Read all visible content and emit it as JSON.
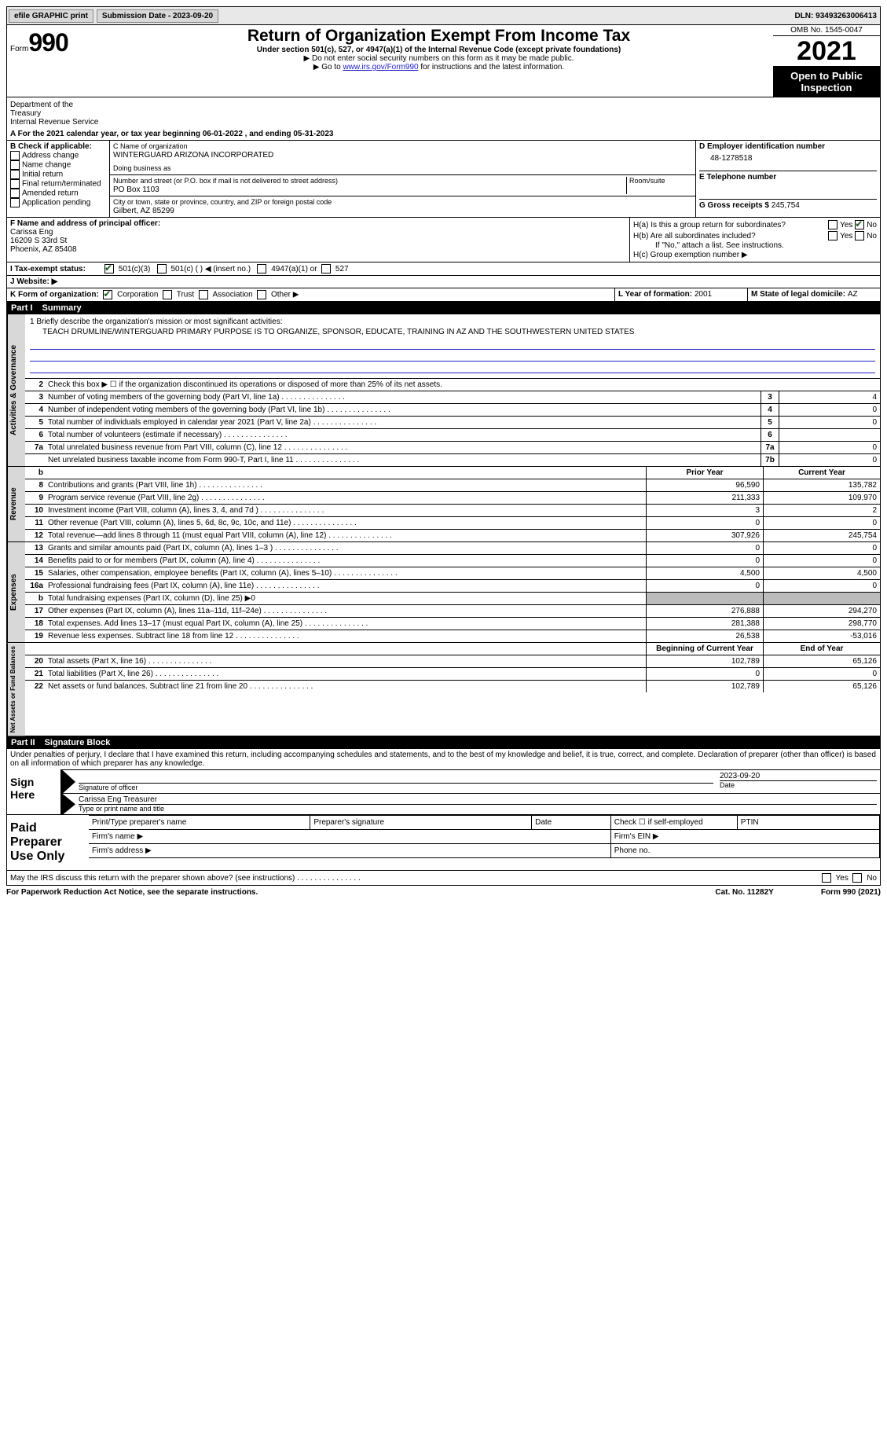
{
  "topbar": {
    "efile": "efile GRAPHIC print",
    "submission_label": "Submission Date - 2023-09-20",
    "dln_label": "DLN: 93493263006413"
  },
  "header": {
    "form_word": "Form",
    "form_num": "990",
    "title": "Return of Organization Exempt From Income Tax",
    "subtitle": "Under section 501(c), 527, or 4947(a)(1) of the Internal Revenue Code (except private foundations)",
    "note1": "▶ Do not enter social security numbers on this form as it may be made public.",
    "note2_pre": "▶ Go to ",
    "note2_link": "www.irs.gov/Form990",
    "note2_post": " for instructions and the latest information.",
    "omb": "OMB No. 1545-0047",
    "year": "2021",
    "open": "Open to Public Inspection",
    "dept": "Department of the Treasury",
    "irs": "Internal Revenue Service"
  },
  "A": {
    "text": "A For the 2021 calendar year, or tax year beginning 06-01-2022    , and ending 05-31-2023"
  },
  "B": {
    "label": "B Check if applicable:",
    "opts": [
      "Address change",
      "Name change",
      "Initial return",
      "Final return/terminated",
      "Amended return",
      "Application pending"
    ]
  },
  "C": {
    "name_label": "C Name of organization",
    "name": "WINTERGUARD ARIZONA INCORPORATED",
    "dba_label": "Doing business as",
    "street_label": "Number and street (or P.O. box if mail is not delivered to street address)",
    "room_label": "Room/suite",
    "street": "PO Box 1103",
    "city_label": "City or town, state or province, country, and ZIP or foreign postal code",
    "city": "Gilbert, AZ   85299"
  },
  "D": {
    "ein_label": "D Employer identification number",
    "ein": "48-1278518",
    "phone_label": "E Telephone number",
    "gross_label": "G Gross receipts $",
    "gross": "245,754"
  },
  "F": {
    "label": "F  Name and address of principal officer:",
    "line1": "Carissa Eng",
    "line2": "16209 S 33rd St",
    "line3": "Phoenix, AZ  85408"
  },
  "H": {
    "a_label": "H(a)  Is this a group return for subordinates?",
    "b_label": "H(b)  Are all subordinates included?",
    "b_note": "If \"No,\" attach a list. See instructions.",
    "c_label": "H(c)  Group exemption number ▶",
    "yes": "Yes",
    "no": "No"
  },
  "I": {
    "label": "I   Tax-exempt status:",
    "opt1": "501(c)(3)",
    "opt2": "501(c) (   ) ◀ (insert no.)",
    "opt3": "4947(a)(1) or",
    "opt4": "527"
  },
  "J": {
    "label": "J   Website: ▶"
  },
  "K": {
    "label": "K Form of organization:",
    "corp": "Corporation",
    "trust": "Trust",
    "assoc": "Association",
    "other": "Other ▶"
  },
  "L": {
    "label": "L Year of formation: ",
    "val": "2001"
  },
  "M": {
    "label": "M State of legal domicile: ",
    "val": "AZ"
  },
  "part1": {
    "num": "Part I",
    "title": "Summary"
  },
  "mission": {
    "label": "1   Briefly describe the organization's mission or most significant activities:",
    "text": "TEACH DRUMLINE/WINTERGUARD PRIMARY PURPOSE IS TO ORGANIZE, SPONSOR, EDUCATE, TRAINING IN AZ AND THE SOUTHWESTERN UNITED STATES"
  },
  "vert": {
    "ag": "Activities & Governance",
    "rev": "Revenue",
    "exp": "Expenses",
    "net": "Net Assets or Fund Balances"
  },
  "lines_gov": [
    {
      "n": "2",
      "d": "Check this box ▶ ☐  if the organization discontinued its operations or disposed of more than 25% of its net assets."
    },
    {
      "n": "3",
      "d": "Number of voting members of the governing body (Part VI, line 1a)",
      "box": "3",
      "v": "4"
    },
    {
      "n": "4",
      "d": "Number of independent voting members of the governing body (Part VI, line 1b)",
      "box": "4",
      "v": "0"
    },
    {
      "n": "5",
      "d": "Total number of individuals employed in calendar year 2021 (Part V, line 2a)",
      "box": "5",
      "v": "0"
    },
    {
      "n": "6",
      "d": "Total number of volunteers (estimate if necessary)",
      "box": "6",
      "v": ""
    },
    {
      "n": "7a",
      "d": "Total unrelated business revenue from Part VIII, column (C), line 12",
      "box": "7a",
      "v": "0"
    },
    {
      "n": "",
      "d": "Net unrelated business taxable income from Form 990-T, Part I, line 11",
      "box": "7b",
      "v": "0"
    }
  ],
  "col_headers": {
    "b": "b",
    "prior": "Prior Year",
    "current": "Current Year"
  },
  "lines_rev": [
    {
      "n": "8",
      "d": "Contributions and grants (Part VIII, line 1h)",
      "p": "96,590",
      "c": "135,782"
    },
    {
      "n": "9",
      "d": "Program service revenue (Part VIII, line 2g)",
      "p": "211,333",
      "c": "109,970"
    },
    {
      "n": "10",
      "d": "Investment income (Part VIII, column (A), lines 3, 4, and 7d )",
      "p": "3",
      "c": "2"
    },
    {
      "n": "11",
      "d": "Other revenue (Part VIII, column (A), lines 5, 6d, 8c, 9c, 10c, and 11e)",
      "p": "0",
      "c": "0"
    },
    {
      "n": "12",
      "d": "Total revenue—add lines 8 through 11 (must equal Part VIII, column (A), line 12)",
      "p": "307,926",
      "c": "245,754"
    }
  ],
  "lines_exp": [
    {
      "n": "13",
      "d": "Grants and similar amounts paid (Part IX, column (A), lines 1–3 )",
      "p": "0",
      "c": "0"
    },
    {
      "n": "14",
      "d": "Benefits paid to or for members (Part IX, column (A), line 4)",
      "p": "0",
      "c": "0"
    },
    {
      "n": "15",
      "d": "Salaries, other compensation, employee benefits (Part IX, column (A), lines 5–10)",
      "p": "4,500",
      "c": "4,500"
    },
    {
      "n": "16a",
      "d": "Professional fundraising fees (Part IX, column (A), line 11e)",
      "p": "0",
      "c": "0"
    },
    {
      "n": "b",
      "d": "Total fundraising expenses (Part IX, column (D), line 25)  ▶0",
      "shaded": true
    },
    {
      "n": "17",
      "d": "Other expenses (Part IX, column (A), lines 11a–11d, 11f–24e)",
      "p": "276,888",
      "c": "294,270"
    },
    {
      "n": "18",
      "d": "Total expenses. Add lines 13–17 (must equal Part IX, column (A), line 25)",
      "p": "281,388",
      "c": "298,770"
    },
    {
      "n": "19",
      "d": "Revenue less expenses. Subtract line 18 from line 12",
      "p": "26,538",
      "c": "-53,016"
    }
  ],
  "net_headers": {
    "prior": "Beginning of Current Year",
    "current": "End of Year"
  },
  "lines_net": [
    {
      "n": "20",
      "d": "Total assets (Part X, line 16)",
      "p": "102,789",
      "c": "65,126"
    },
    {
      "n": "21",
      "d": "Total liabilities (Part X, line 26)",
      "p": "0",
      "c": "0"
    },
    {
      "n": "22",
      "d": "Net assets or fund balances. Subtract line 21 from line 20",
      "p": "102,789",
      "c": "65,126"
    }
  ],
  "part2": {
    "num": "Part II",
    "title": "Signature Block"
  },
  "sig": {
    "decl": "Under penalties of perjury, I declare that I have examined this return, including accompanying schedules and statements, and to the best of my knowledge and belief, it is true, correct, and complete. Declaration of preparer (other than officer) is based on all information of which preparer has any knowledge.",
    "sign_here": "Sign Here",
    "sig_officer": "Signature of officer",
    "date": "Date",
    "date_val": "2023-09-20",
    "name_title": "Carissa Eng  Treasurer",
    "name_label": "Type or print name and title",
    "paid": "Paid Preparer Use Only",
    "prep_name": "Print/Type preparer's name",
    "prep_sig": "Preparer's signature",
    "prep_date": "Date",
    "check_self": "Check ☐ if self-employed",
    "ptin": "PTIN",
    "firm_name": "Firm's name    ▶",
    "firm_ein": "Firm's EIN ▶",
    "firm_addr": "Firm's address ▶",
    "phone": "Phone no."
  },
  "bottom": {
    "q": "May the IRS discuss this return with the preparer shown above? (see instructions)",
    "yes": "Yes",
    "no": "No"
  },
  "footer": {
    "left": "For Paperwork Reduction Act Notice, see the separate instructions.",
    "cat": "Cat. No. 11282Y",
    "form": "Form 990 (2021)"
  }
}
